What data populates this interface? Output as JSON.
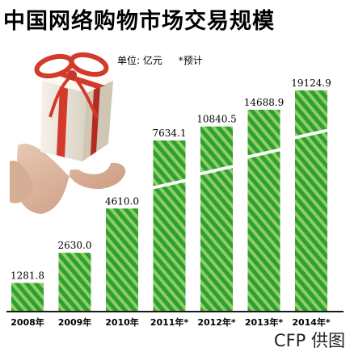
{
  "title": "中国网络购物市场交易规模",
  "legend": {
    "unit": "单位: 亿元",
    "note": "*预计"
  },
  "credit": "CFP 供图",
  "colors": {
    "bar_green": "#2e9e3a",
    "stripe": "#8fd05a",
    "axis": "#1a1a1a"
  },
  "chart_data": {
    "type": "bar",
    "title": "中国网络购物市场交易规模",
    "unit": "单位: 亿元",
    "categories": [
      "2008年",
      "2009年",
      "2010年",
      "2011年*",
      "2012年*",
      "2013年*",
      "2014年*"
    ],
    "values": [
      1281.8,
      2630.0,
      4610.0,
      7634.1,
      10840.5,
      14688.9,
      19124.9
    ],
    "value_labels": [
      "1281.8",
      "2630.0",
      "4610.0",
      "7634.1",
      "10840.5",
      "14688.9",
      "19124.9"
    ],
    "axis_break_after_index": 2
  }
}
